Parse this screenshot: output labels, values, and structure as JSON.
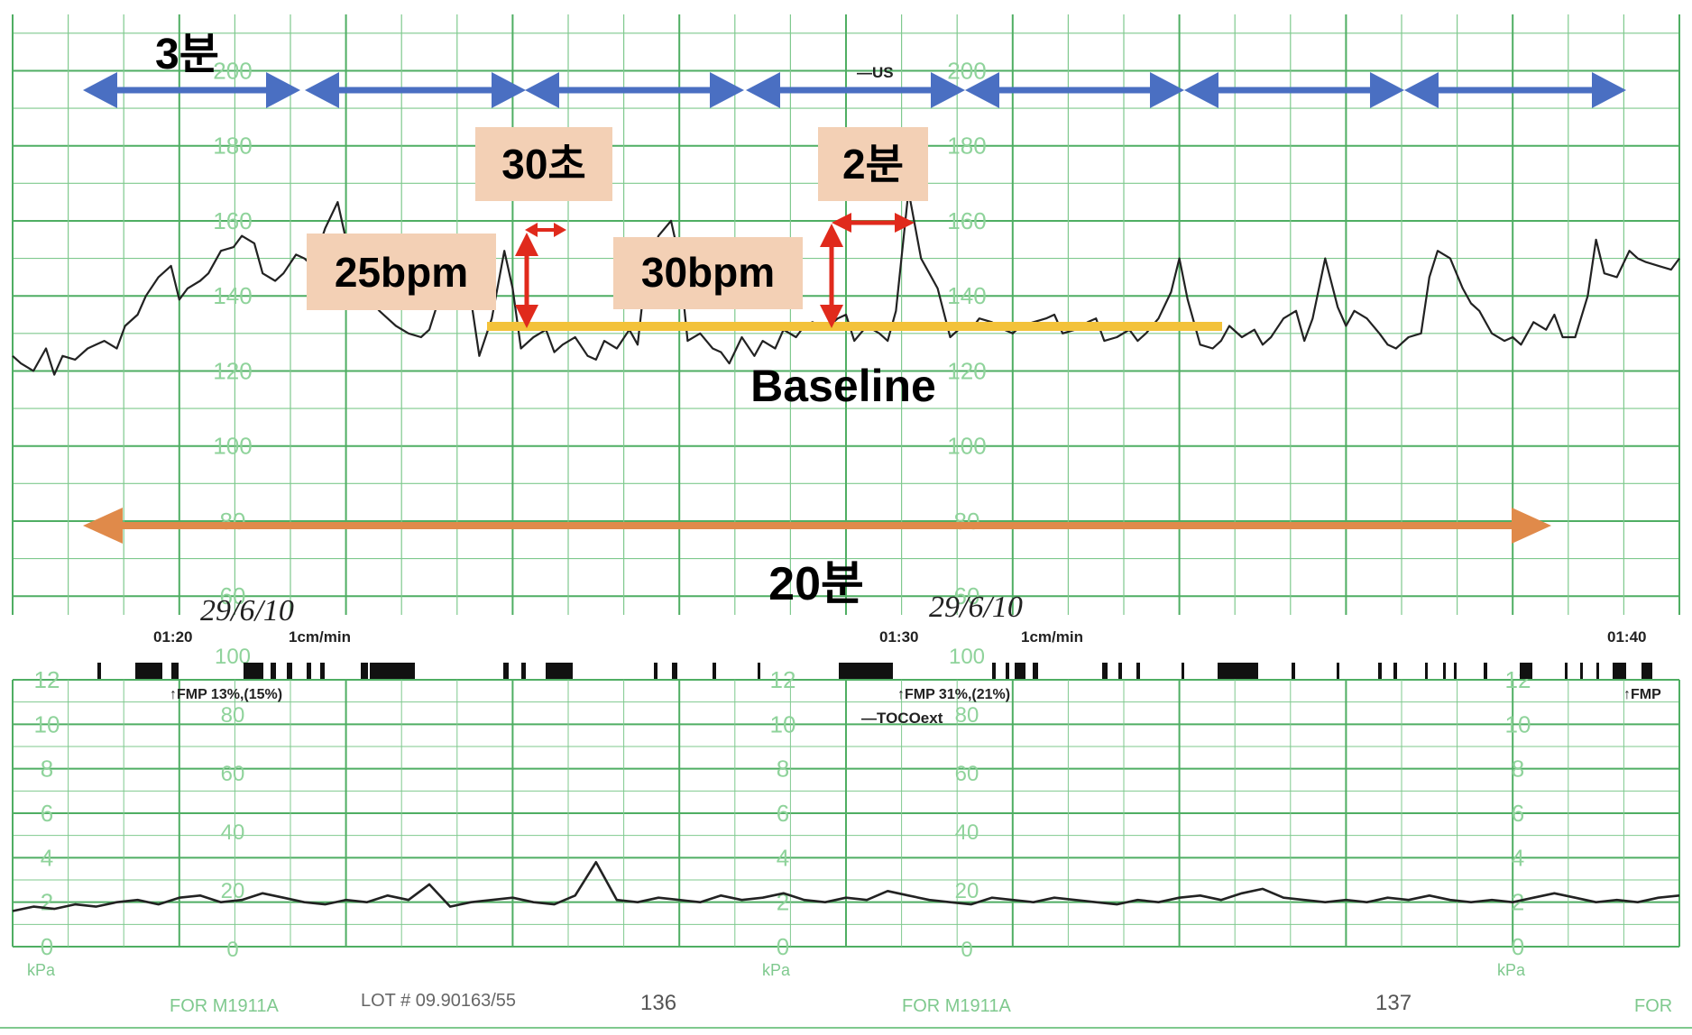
{
  "colors": {
    "grid": "#7fc98e",
    "grid_major": "#4fae63",
    "grid_label": "#8fd39b",
    "trace": "#222222",
    "interval_arrow": "#4a6fc2",
    "total_arrow": "#e08a4a",
    "measure_arrow": "#e02a1c",
    "label_box": "#f3d0b5",
    "baseline": "#f3c23a"
  },
  "chart_data": [
    {
      "type": "line",
      "name": "fhr",
      "ylim": [
        55,
        215
      ],
      "y_ticks": [
        60,
        80,
        100,
        120,
        140,
        160,
        180,
        200
      ],
      "panel_sections": 3,
      "x": [
        0,
        2,
        5,
        8,
        10,
        12,
        15,
        18,
        20,
        22,
        25,
        27,
        30,
        32,
        35,
        38,
        40,
        42,
        45,
        47,
        50,
        53,
        55,
        58,
        60,
        63,
        65,
        68,
        70,
        72,
        75,
        78,
        80,
        82,
        85,
        88,
        90,
        92,
        95,
        98,
        100,
        102,
        105,
        108,
        110,
        112,
        115,
        118,
        120,
        122,
        125,
        128,
        130,
        132,
        135,
        138,
        140,
        142,
        145,
        148,
        150,
        152,
        155,
        158,
        160,
        162,
        165,
        168,
        170,
        172,
        175,
        178,
        180,
        183,
        185,
        188,
        190,
        192,
        195,
        198,
        200,
        202,
        205,
        208,
        210,
        212,
        215,
        218,
        220,
        222,
        225,
        228,
        230,
        232,
        235,
        238,
        240,
        242,
        245,
        248,
        250,
        252,
        255,
        258,
        260,
        262,
        265,
        268,
        270,
        272,
        275,
        278,
        280,
        282,
        285,
        288,
        290,
        292,
        295,
        298,
        300,
        302,
        305,
        308,
        310,
        312,
        315,
        318,
        320,
        322,
        325,
        328,
        330,
        332,
        335,
        338,
        340,
        342,
        345,
        348,
        350,
        352,
        355,
        358,
        360,
        362,
        365,
        368,
        370,
        372,
        375,
        378,
        380,
        382,
        385,
        388,
        390,
        392,
        395,
        398,
        400
      ],
      "values": [
        124,
        122,
        120,
        126,
        119,
        124,
        123,
        126,
        127,
        128,
        126,
        132,
        135,
        140,
        145,
        148,
        139,
        142,
        144,
        146,
        152,
        153,
        156,
        154,
        146,
        144,
        146,
        151,
        150,
        148,
        158,
        165,
        155,
        150,
        140,
        136,
        134,
        132,
        130,
        129,
        131,
        138,
        146,
        151,
        139,
        124,
        134,
        152,
        142,
        126,
        129,
        131,
        125,
        127,
        129,
        124,
        123,
        128,
        126,
        131,
        127,
        147,
        156,
        160,
        150,
        128,
        130,
        126,
        125,
        122,
        129,
        124,
        128,
        126,
        131,
        129,
        132,
        133,
        131,
        134,
        135,
        128,
        132,
        130,
        128,
        136,
        168,
        150,
        146,
        142,
        129,
        132,
        131,
        134,
        133,
        131,
        130,
        132,
        133,
        134,
        135,
        130,
        131,
        133,
        134,
        128,
        129,
        131,
        128,
        130,
        134,
        141,
        150,
        139,
        127,
        126,
        128,
        132,
        129,
        131,
        127,
        129,
        134,
        136,
        128,
        134,
        150,
        137,
        132,
        136,
        134,
        130,
        127,
        126,
        129,
        130,
        145,
        152,
        150,
        142,
        138,
        136,
        130,
        128,
        129,
        127,
        133,
        131,
        135,
        129,
        129,
        140,
        155,
        146,
        145,
        152,
        150,
        149,
        148,
        147,
        150
      ]
    },
    {
      "type": "line",
      "name": "toco",
      "ylim": [
        0,
        12
      ],
      "y_ticks": [
        0,
        2,
        4,
        6,
        8,
        10,
        12
      ],
      "panel_sections": 3,
      "x": [
        0,
        5,
        10,
        15,
        20,
        25,
        30,
        35,
        40,
        45,
        50,
        55,
        60,
        65,
        70,
        75,
        80,
        85,
        90,
        95,
        100,
        105,
        110,
        115,
        120,
        125,
        130,
        135,
        140,
        145,
        150,
        155,
        160,
        165,
        170,
        175,
        180,
        185,
        190,
        195,
        200,
        205,
        210,
        215,
        220,
        225,
        230,
        235,
        240,
        245,
        250,
        255,
        260,
        265,
        270,
        275,
        280,
        285,
        290,
        295,
        300,
        305,
        310,
        315,
        320,
        325,
        330,
        335,
        340,
        345,
        350,
        355,
        360,
        365,
        370,
        375,
        380,
        385,
        390,
        395,
        400
      ],
      "values": [
        1.6,
        1.8,
        1.7,
        1.9,
        1.8,
        2.0,
        2.1,
        1.9,
        2.2,
        2.3,
        2.0,
        2.1,
        2.4,
        2.2,
        2.0,
        1.9,
        2.1,
        2.0,
        2.3,
        2.1,
        2.8,
        1.8,
        2.0,
        2.1,
        2.2,
        2.0,
        1.9,
        2.3,
        3.8,
        2.1,
        2.0,
        2.2,
        2.1,
        2.0,
        2.3,
        2.1,
        2.2,
        2.4,
        2.1,
        2.0,
        2.2,
        2.1,
        2.5,
        2.3,
        2.1,
        2.0,
        1.9,
        2.2,
        2.1,
        2.0,
        2.2,
        2.1,
        2.0,
        1.9,
        2.1,
        2.0,
        2.2,
        2.3,
        2.1,
        2.4,
        2.6,
        2.2,
        2.1,
        2.0,
        2.1,
        2.0,
        2.2,
        2.1,
        2.3,
        2.1,
        2.0,
        2.1,
        2.0,
        2.2,
        2.4,
        2.2,
        2.0,
        2.1,
        2.0,
        2.2,
        2.3
      ]
    }
  ],
  "annotations": {
    "label_3min": "3분",
    "label_30s": "30초",
    "label_2min": "2분",
    "label_25bpm": "25bpm",
    "label_30bpm": "30bpm",
    "label_baseline": "Baseline",
    "label_20min": "20분"
  },
  "printed": {
    "time_1": "01:20",
    "time_2": "01:30",
    "time_3": "01:40",
    "speed_1": "1cm/min",
    "speed_2": "1cm/min",
    "date_1": "29/6/10",
    "date_2": "29/6/10",
    "us_marker": "—US",
    "toco_marker": "—TOCOext",
    "fmp_1": "↑FMP 13%,(15%)",
    "fmp_2": "↑FMP 31%,(21%)",
    "fmp_3": "↑FMP",
    "kpa": "kPa",
    "footer_for_1": "FOR M1911A",
    "footer_lot": "LOT # 09.90163/55",
    "footer_page_1": "136",
    "footer_for_2": "FOR M1911A",
    "footer_page_2": "137",
    "footer_for_3": "FOR",
    "pressure_ticks": [
      "0",
      "20",
      "40",
      "60",
      "80",
      "100"
    ]
  }
}
